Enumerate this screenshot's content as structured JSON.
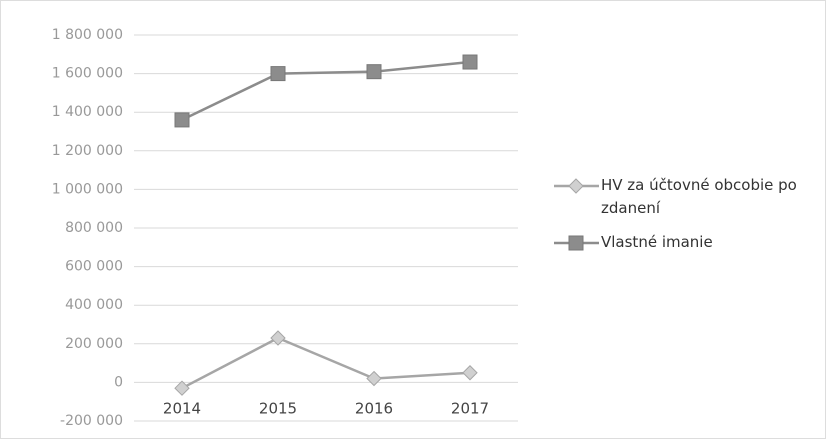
{
  "chart_data": {
    "type": "line",
    "categories": [
      "2014",
      "2015",
      "2016",
      "2017"
    ],
    "series": [
      {
        "name": "HV za účtovné obcobie po zdanení",
        "color": "#a6a6a6",
        "marker": "diamond",
        "values": [
          -30000,
          230000,
          20000,
          50000
        ]
      },
      {
        "name": "Vlastné imanie",
        "color": "#8c8c8c",
        "marker": "square",
        "values": [
          1360000,
          1600000,
          1610000,
          1660000
        ]
      }
    ],
    "ylim": [
      -200000,
      1800000
    ],
    "yticks": [
      {
        "value": -200000,
        "label": "-200 000"
      },
      0,
      {
        "value": 200000,
        "label": "200 000"
      },
      {
        "value": 400000,
        "label": "400 000"
      },
      {
        "value": 600000,
        "label": "600 000"
      },
      {
        "value": 800000,
        "label": "800 000"
      },
      {
        "value": 1000000,
        "label": "1 000 000"
      },
      {
        "value": 1200000,
        "label": "1 200 000"
      },
      {
        "value": 1400000,
        "label": "1 400 000"
      },
      {
        "value": 1600000,
        "label": "1 600 000"
      },
      {
        "value": 1800000,
        "label": "1 800 000"
      }
    ],
    "grid": true,
    "legend": "right"
  }
}
